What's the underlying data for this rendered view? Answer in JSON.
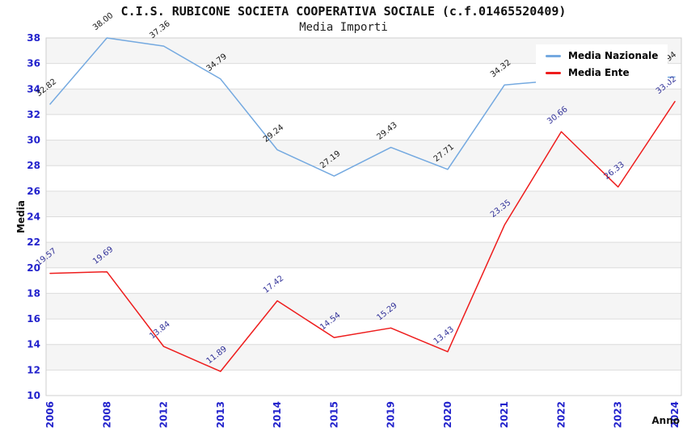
{
  "chart_data": {
    "type": "line",
    "title": "C.I.S. RUBICONE SOCIETA COOPERATIVA SOCIALE (c.f.01465520409)",
    "subtitle": "Media Importi",
    "xlabel": "Anno",
    "ylabel": "Media",
    "ylim": [
      10,
      38
    ],
    "ytick_step": 2,
    "grid": true,
    "legend_position": "top-right",
    "axis_tick_color": "#2222cc",
    "categories": [
      "2006",
      "2008",
      "2012",
      "2013",
      "2014",
      "2015",
      "2019",
      "2020",
      "2021",
      "2022",
      "2023",
      "2024"
    ],
    "series": [
      {
        "name": "Media Nazionale",
        "color": "#74a9e0",
        "label_color": "#1a1a1a",
        "values": [
          32.82,
          38.0,
          37.36,
          34.79,
          29.24,
          27.19,
          29.43,
          27.71,
          34.32,
          34.7,
          34.8,
          34.94
        ],
        "point_labels": [
          "32.82",
          "38.00",
          "37.36",
          "34.79",
          "29.24",
          "27.19",
          "29.43",
          "27.71",
          "34.32",
          null,
          null,
          "34.94"
        ]
      },
      {
        "name": "Media Ente",
        "color": "#ee1c1c",
        "label_color": "#333399",
        "values": [
          19.57,
          19.69,
          13.84,
          11.89,
          17.42,
          14.54,
          15.29,
          13.43,
          23.35,
          30.66,
          26.33,
          33.02
        ],
        "point_labels": [
          "19.57",
          "19.69",
          "13.84",
          "11.89",
          "17.42",
          "14.54",
          "15.29",
          "13.43",
          "23.35",
          "30.66",
          "26.33",
          "33.02"
        ]
      }
    ]
  }
}
